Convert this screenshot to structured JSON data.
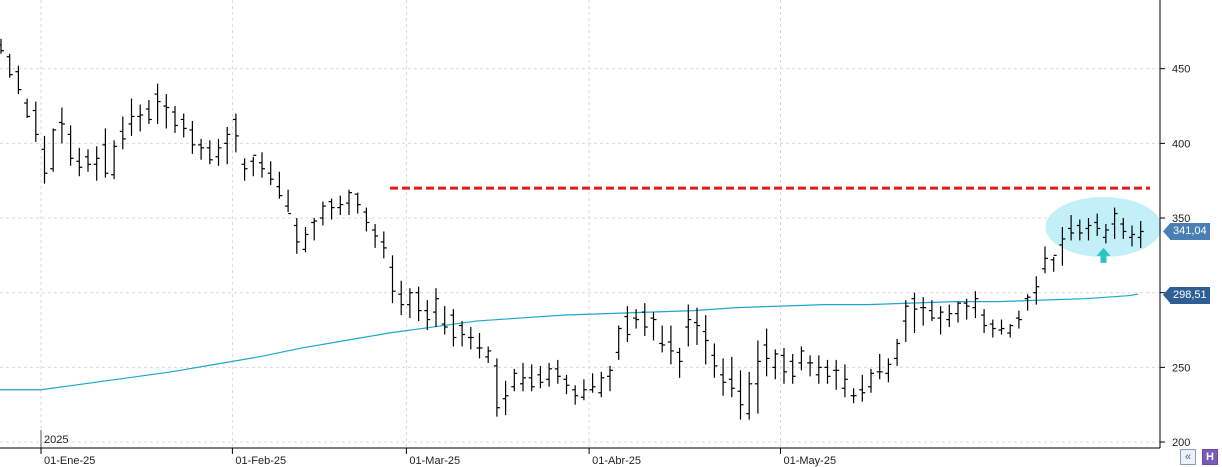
{
  "chart_data": {
    "type": "ohlc",
    "year_marker": "2025",
    "y_axis": {
      "ticks": [
        "200",
        "250",
        "300",
        "350",
        "400",
        "450"
      ],
      "ylim": [
        196,
        496
      ]
    },
    "x_axis": {
      "ticks": [
        {
          "label": "01-Ene-25",
          "index": 0
        },
        {
          "label": "01-Feb-25",
          "index": 22
        },
        {
          "label": "01-Mar-25",
          "index": 42
        },
        {
          "label": "01-Abr-25",
          "index": 63
        },
        {
          "label": "01-May-25",
          "index": 85
        }
      ]
    },
    "bars": [
      [
        466,
        470,
        460,
        462
      ],
      [
        458,
        460,
        444,
        446
      ],
      [
        448,
        452,
        433,
        436
      ],
      [
        427,
        430,
        417,
        418
      ],
      [
        422,
        428,
        401,
        406
      ],
      [
        396,
        405,
        373,
        380
      ],
      [
        383,
        410,
        381,
        409
      ],
      [
        414,
        424,
        400,
        413
      ],
      [
        406,
        412,
        385,
        390
      ],
      [
        388,
        397,
        378,
        384
      ],
      [
        391,
        396,
        381,
        386
      ],
      [
        386,
        398,
        375,
        390
      ],
      [
        399,
        410,
        377,
        380
      ],
      [
        379,
        402,
        376,
        398
      ],
      [
        408,
        418,
        396,
        403
      ],
      [
        413,
        430,
        405,
        418
      ],
      [
        418,
        426,
        408,
        419
      ],
      [
        423,
        429,
        413,
        416
      ],
      [
        433,
        440,
        413,
        428
      ],
      [
        425,
        433,
        410,
        424
      ],
      [
        421,
        425,
        407,
        412
      ],
      [
        416,
        420,
        404,
        410
      ],
      [
        409,
        415,
        393,
        399
      ],
      [
        399,
        403,
        389,
        397
      ],
      [
        397,
        402,
        386,
        389
      ],
      [
        391,
        403,
        385,
        397
      ],
      [
        400,
        411,
        386,
        406
      ],
      [
        416,
        420,
        394,
        405
      ],
      [
        386,
        390,
        375,
        383
      ],
      [
        388,
        391,
        378,
        392
      ],
      [
        387,
        394,
        377,
        383
      ],
      [
        380,
        388,
        372,
        376
      ],
      [
        371,
        381,
        363,
        365
      ],
      [
        358,
        369,
        354,
        353
      ],
      [
        345,
        350,
        326,
        334
      ],
      [
        329,
        344,
        327,
        339
      ],
      [
        347,
        350,
        335,
        348
      ],
      [
        350,
        361,
        345,
        358
      ],
      [
        361,
        363,
        349,
        357
      ],
      [
        357,
        365,
        352,
        359
      ],
      [
        360,
        369,
        352,
        367
      ],
      [
        366,
        367,
        353,
        359
      ],
      [
        354,
        357,
        341,
        347
      ],
      [
        342,
        346,
        330,
        338
      ],
      [
        334,
        341,
        323,
        330
      ],
      [
        317,
        325,
        293,
        301
      ],
      [
        299,
        308,
        285,
        292
      ],
      [
        292,
        303,
        283,
        300
      ],
      [
        300,
        304,
        281,
        288
      ],
      [
        288,
        295,
        275,
        282
      ],
      [
        287,
        303,
        277,
        296
      ],
      [
        279,
        291,
        272,
        277
      ],
      [
        285,
        289,
        264,
        270
      ],
      [
        278,
        281,
        264,
        272
      ],
      [
        270,
        277,
        262,
        270
      ],
      [
        263,
        273,
        256,
        263
      ],
      [
        257,
        264,
        253,
        261
      ],
      [
        251,
        256,
        217,
        223
      ],
      [
        229,
        241,
        218,
        231
      ],
      [
        237,
        249,
        234,
        246
      ],
      [
        239,
        253,
        234,
        243
      ],
      [
        243,
        252,
        234,
        237
      ],
      [
        245,
        251,
        236,
        240
      ],
      [
        242,
        253,
        237,
        249
      ],
      [
        249,
        255,
        239,
        244
      ],
      [
        242,
        245,
        232,
        238
      ],
      [
        235,
        238,
        225,
        231
      ],
      [
        230,
        242,
        228,
        235
      ],
      [
        235,
        246,
        233,
        237
      ],
      [
        233,
        247,
        230,
        243
      ],
      [
        244,
        251,
        234,
        248
      ],
      [
        260,
        278,
        255,
        276
      ],
      [
        284,
        291,
        267,
        272
      ],
      [
        283,
        289,
        276,
        282
      ],
      [
        287,
        293,
        271,
        277
      ],
      [
        283,
        287,
        268,
        282
      ],
      [
        266,
        278,
        260,
        265
      ],
      [
        267,
        278,
        252,
        261
      ],
      [
        260,
        263,
        243,
        254
      ],
      [
        277,
        292,
        264,
        282
      ],
      [
        280,
        290,
        265,
        278
      ],
      [
        274,
        285,
        252,
        268
      ],
      [
        258,
        266,
        243,
        251
      ],
      [
        245,
        256,
        231,
        240
      ],
      [
        242,
        257,
        230,
        236
      ],
      [
        234,
        248,
        215,
        225
      ],
      [
        219,
        247,
        215,
        239
      ],
      [
        239,
        268,
        219,
        254
      ],
      [
        265,
        276,
        244,
        256
      ],
      [
        250,
        262,
        242,
        259
      ],
      [
        258,
        263,
        239,
        247
      ],
      [
        254,
        259,
        239,
        244
      ],
      [
        253,
        264,
        248,
        261
      ],
      [
        253,
        258,
        244,
        253
      ],
      [
        245,
        258,
        239,
        250
      ],
      [
        250,
        255,
        239,
        244
      ],
      [
        248,
        255,
        235,
        248
      ],
      [
        236,
        252,
        230,
        242
      ],
      [
        231,
        236,
        226,
        231
      ],
      [
        235,
        245,
        227,
        233
      ],
      [
        237,
        249,
        233,
        246
      ],
      [
        247,
        259,
        242,
        247
      ],
      [
        246,
        256,
        240,
        252
      ],
      [
        256,
        269,
        251,
        266
      ],
      [
        281,
        295,
        267,
        291
      ],
      [
        296,
        300,
        273,
        289
      ],
      [
        290,
        297,
        278,
        290
      ],
      [
        288,
        295,
        281,
        283
      ],
      [
        283,
        291,
        272,
        287
      ],
      [
        282,
        292,
        277,
        286
      ],
      [
        286,
        294,
        280,
        293
      ],
      [
        293,
        296,
        282,
        291
      ],
      [
        290,
        301,
        283,
        296
      ],
      [
        285,
        289,
        273,
        278
      ],
      [
        279,
        282,
        270,
        276
      ],
      [
        275,
        282,
        272,
        276
      ],
      [
        273,
        279,
        270,
        278
      ],
      [
        283,
        288,
        276,
        282
      ],
      [
        296,
        299,
        288,
        297
      ],
      [
        300,
        311,
        292,
        304
      ],
      [
        316,
        331,
        313,
        323
      ],
      [
        322,
        324,
        314,
        325
      ],
      [
        332,
        344,
        318,
        336
      ],
      [
        343,
        352,
        335,
        340
      ],
      [
        345,
        349,
        335,
        340
      ],
      [
        343,
        350,
        335,
        345
      ],
      [
        347,
        353,
        338,
        343
      ],
      [
        337,
        346,
        333,
        342
      ],
      [
        346,
        357,
        336,
        353
      ],
      [
        346,
        350,
        336,
        341
      ],
      [
        337,
        345,
        331,
        339
      ],
      [
        337,
        348,
        330,
        341
      ]
    ],
    "series": [
      {
        "type": "moving_average",
        "anchors": [
          [
            0,
            235
          ],
          [
            5,
            239
          ],
          [
            10,
            243
          ],
          [
            15,
            247
          ],
          [
            20,
            252
          ],
          [
            25,
            257
          ],
          [
            30,
            263
          ],
          [
            35,
            268
          ],
          [
            40,
            273
          ],
          [
            45,
            277
          ],
          [
            50,
            281
          ],
          [
            55,
            283
          ],
          [
            60,
            285
          ],
          [
            65,
            286
          ],
          [
            70,
            287
          ],
          [
            75,
            288
          ],
          [
            80,
            290
          ],
          [
            85,
            291
          ],
          [
            90,
            292
          ],
          [
            95,
            292
          ],
          [
            100,
            293
          ],
          [
            105,
            294
          ],
          [
            110,
            294
          ],
          [
            115,
            295
          ],
          [
            120,
            296
          ],
          [
            125,
            298
          ],
          [
            129,
            299
          ]
        ]
      },
      {
        "type": "resistance_line",
        "value": 370
      }
    ],
    "annotations": [
      {
        "type": "ellipse",
        "label": ""
      },
      {
        "type": "arrow-up",
        "label": ""
      }
    ],
    "price_tags": [
      {
        "label": "341,04",
        "value": 341.04,
        "color": "#4a7fb5"
      },
      {
        "label": "298,51",
        "value": 298.51,
        "color": "#2e5f94"
      }
    ],
    "colors": {
      "bars": "#000000",
      "ma": "#1ea7c9",
      "resistance": "#e11b1b",
      "ellipse": "#bfeef8",
      "arrow": "#2bc4c4",
      "grid": "#d9d9d9"
    }
  },
  "toolbar": {
    "collapse_icon": "«",
    "save_icon": "H"
  }
}
